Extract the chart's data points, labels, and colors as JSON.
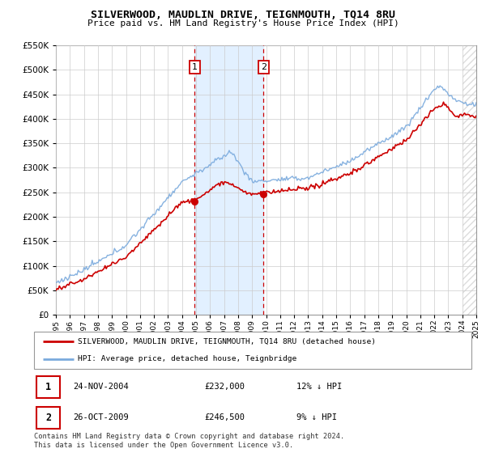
{
  "title": "SILVERWOOD, MAUDLIN DRIVE, TEIGNMOUTH, TQ14 8RU",
  "subtitle": "Price paid vs. HM Land Registry's House Price Index (HPI)",
  "legend_label_red": "SILVERWOOD, MAUDLIN DRIVE, TEIGNMOUTH, TQ14 8RU (detached house)",
  "legend_label_blue": "HPI: Average price, detached house, Teignbridge",
  "footer": "Contains HM Land Registry data © Crown copyright and database right 2024.\nThis data is licensed under the Open Government Licence v3.0.",
  "sale1_date": "24-NOV-2004",
  "sale1_price": "£232,000",
  "sale1_hpi": "12% ↓ HPI",
  "sale1_year": 2004.9,
  "sale1_value": 232000,
  "sale2_date": "26-OCT-2009",
  "sale2_price": "£246,500",
  "sale2_hpi": "9% ↓ HPI",
  "sale2_year": 2009.82,
  "sale2_value": 246500,
  "xmin": 1995,
  "xmax": 2025,
  "ymin": 0,
  "ymax": 550000,
  "yticks": [
    0,
    50000,
    100000,
    150000,
    200000,
    250000,
    300000,
    350000,
    400000,
    450000,
    500000,
    550000
  ],
  "xticks": [
    1995,
    1996,
    1997,
    1998,
    1999,
    2000,
    2001,
    2002,
    2003,
    2004,
    2005,
    2006,
    2007,
    2008,
    2009,
    2010,
    2011,
    2012,
    2013,
    2014,
    2015,
    2016,
    2017,
    2018,
    2019,
    2020,
    2021,
    2022,
    2023,
    2024,
    2025
  ],
  "color_red": "#cc0000",
  "color_blue": "#7aaadd",
  "color_shade": "#ddeeff",
  "grid_color": "#cccccc",
  "hatch_color": "#bbbbbb"
}
